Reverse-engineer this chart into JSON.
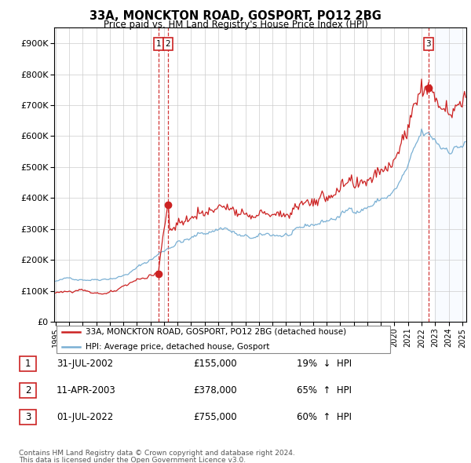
{
  "title": "33A, MONCKTON ROAD, GOSPORT, PO12 2BG",
  "subtitle": "Price paid vs. HM Land Registry's House Price Index (HPI)",
  "ylim": [
    0,
    950000
  ],
  "yticks": [
    0,
    100000,
    200000,
    300000,
    400000,
    500000,
    600000,
    700000,
    800000,
    900000
  ],
  "ytick_labels": [
    "£0",
    "£100K",
    "£200K",
    "£300K",
    "£400K",
    "£500K",
    "£600K",
    "£700K",
    "£800K",
    "£900K"
  ],
  "xlim_start": 1994.9,
  "xlim_end": 2025.3,
  "line1_color": "#cc2222",
  "line2_color": "#7ab0d4",
  "vline_color": "#cc2222",
  "box_edgecolor": "#cc2222",
  "shade_color": "#ddeeff",
  "shade_start": 2023.0,
  "legend_label1": "33A, MONCKTON ROAD, GOSPORT, PO12 2BG (detached house)",
  "legend_label2": "HPI: Average price, detached house, Gosport",
  "transactions": [
    {
      "num": 1,
      "date": "31-JUL-2002",
      "price": 155000,
      "pct": "19%",
      "dir": "↓",
      "year": 2002.58
    },
    {
      "num": 2,
      "date": "11-APR-2003",
      "price": 378000,
      "pct": "65%",
      "dir": "↑",
      "year": 2003.28
    },
    {
      "num": 3,
      "date": "01-JUL-2022",
      "price": 755000,
      "pct": "60%",
      "dir": "↑",
      "year": 2022.5
    }
  ],
  "footer_line1": "Contains HM Land Registry data © Crown copyright and database right 2024.",
  "footer_line2": "This data is licensed under the Open Government Licence v3.0."
}
